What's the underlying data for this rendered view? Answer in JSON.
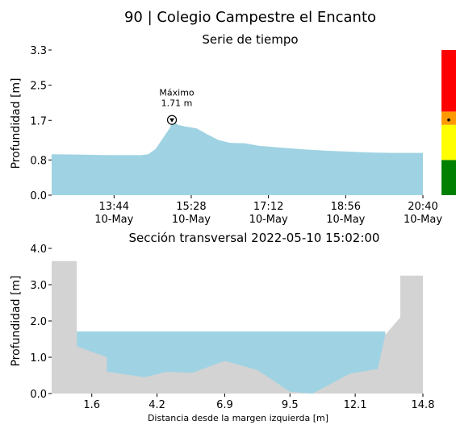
{
  "title": "90 | Colegio Campestre el Encanto",
  "colors": {
    "water": "#9fd3e3",
    "terrain": "#d3d3d3",
    "level_red": "#ff0000",
    "level_orange": "#ff9900",
    "level_yellow": "#ffff00",
    "level_green": "#008000"
  },
  "chart_data": [
    {
      "type": "area",
      "title": "Serie de tiempo",
      "xlabel": "",
      "ylabel": "Profundidad [m]",
      "ylim": [
        0,
        3.3
      ],
      "xlim": [
        "2022-05-10 12:20",
        "2022-05-10 20:40"
      ],
      "yticks": [
        "0.0",
        "0.8",
        "1.7",
        "2.5",
        "3.3"
      ],
      "xticks": [
        {
          "time": "13:44",
          "date": "10-May"
        },
        {
          "time": "15:28",
          "date": "10-May"
        },
        {
          "time": "17:12",
          "date": "10-May"
        },
        {
          "time": "18:56",
          "date": "10-May"
        },
        {
          "time": "20:40",
          "date": "10-May"
        }
      ],
      "series": [
        {
          "x": [
            "2022-05-10 12:20",
            "2022-05-10 13:00",
            "2022-05-10 13:40",
            "2022-05-10 14:20",
            "2022-05-10 14:30",
            "2022-05-10 14:40",
            "2022-05-10 14:50",
            "2022-05-10 15:00",
            "2022-05-10 15:02",
            "2022-05-10 15:10",
            "2022-05-10 15:20",
            "2022-05-10 15:35",
            "2022-05-10 15:50",
            "2022-05-10 16:05",
            "2022-05-10 16:20",
            "2022-05-10 16:40",
            "2022-05-10 17:00",
            "2022-05-10 17:30",
            "2022-05-10 18:00",
            "2022-05-10 18:30",
            "2022-05-10 19:00",
            "2022-05-10 19:30",
            "2022-05-10 20:00",
            "2022-05-10 20:40"
          ],
          "values": [
            0.93,
            0.92,
            0.91,
            0.91,
            0.93,
            1.05,
            1.3,
            1.55,
            1.71,
            1.6,
            1.56,
            1.52,
            1.38,
            1.25,
            1.19,
            1.18,
            1.12,
            1.08,
            1.04,
            1.01,
            0.99,
            0.97,
            0.96,
            0.96
          ]
        }
      ],
      "annotation": {
        "label": "Máximo",
        "value_label": "1.71 m",
        "time": "2022-05-10 15:02",
        "value": 1.71
      }
    },
    {
      "type": "area",
      "title": "Sección transversal 2022-05-10 15:02:00",
      "xlabel": "Distancia desde la margen izquierda [m]",
      "ylabel": "Profundidad [m]",
      "xlim": [
        0,
        14.8
      ],
      "ylim": [
        0,
        4.0
      ],
      "xticks": [
        "1.6",
        "4.2",
        "6.9",
        "9.5",
        "12.1",
        "14.8"
      ],
      "yticks": [
        "0.0",
        "1.0",
        "2.0",
        "3.0",
        "4.0"
      ],
      "water_level": 1.71,
      "water_range": [
        1.0,
        13.3
      ],
      "terrain": {
        "x": [
          0,
          0,
          1.0,
          1.0,
          2.2,
          2.2,
          3.7,
          4.6,
          5.6,
          6.9,
          8.2,
          9.5,
          10.4,
          11.9,
          13.0,
          13.3,
          13.9,
          13.9,
          14.8,
          14.8
        ],
        "y": [
          0,
          3.65,
          3.65,
          1.3,
          1.0,
          0.6,
          0.45,
          0.6,
          0.57,
          0.9,
          0.65,
          0.05,
          0.0,
          0.55,
          0.68,
          1.62,
          2.1,
          3.25,
          3.25,
          0
        ]
      }
    }
  ],
  "level_bar": {
    "segments": [
      {
        "from": 0,
        "to": 0.8,
        "color": "#008000"
      },
      {
        "from": 0.8,
        "to": 1.6,
        "color": "#ffff00"
      },
      {
        "from": 1.6,
        "to": 1.9,
        "color": "#ff9900"
      },
      {
        "from": 1.9,
        "to": 3.3,
        "color": "#ff0000"
      }
    ],
    "marker_value": 1.71
  }
}
